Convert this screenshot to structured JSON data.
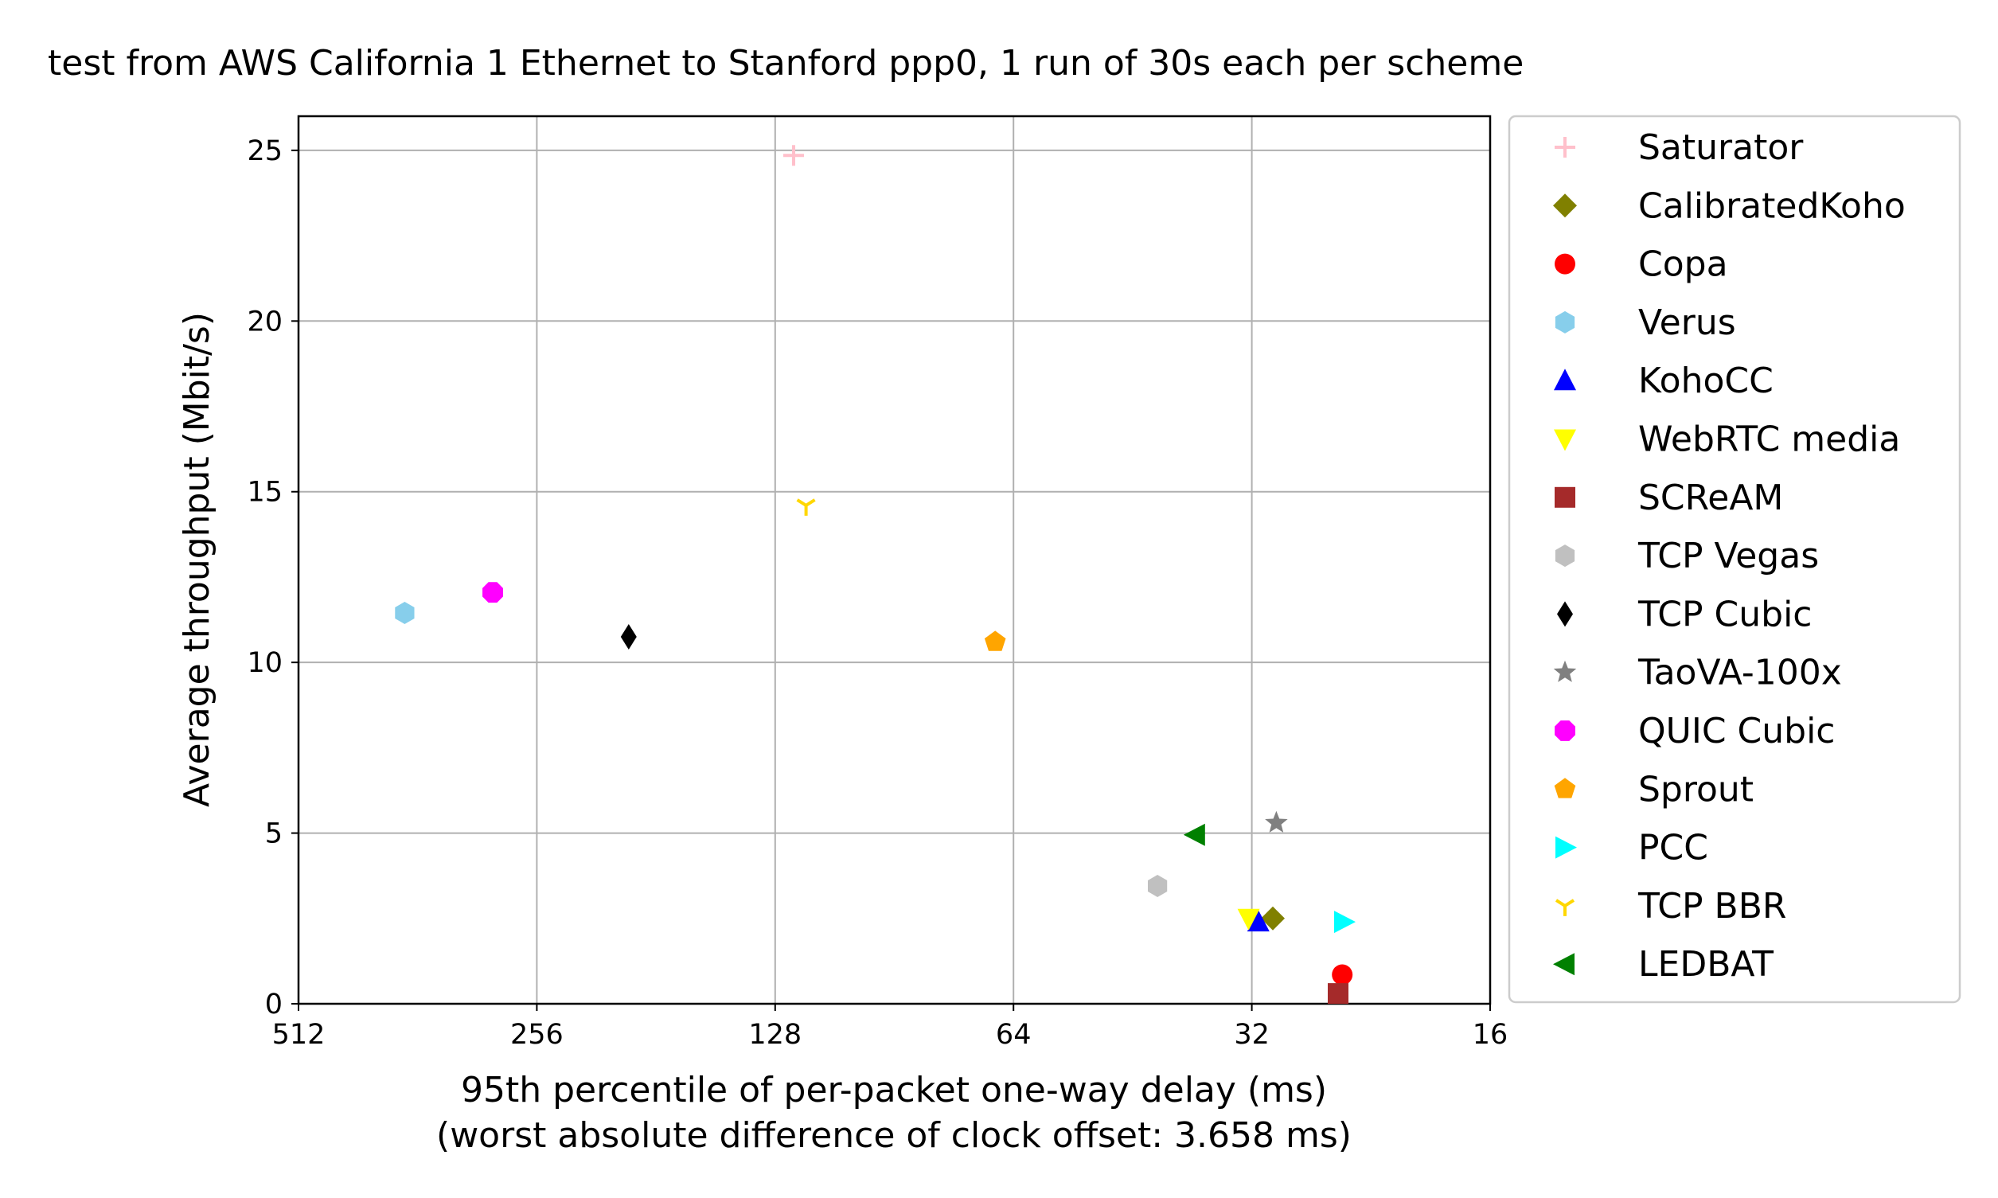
{
  "chart_data": {
    "type": "scatter",
    "title": "test from AWS California 1 Ethernet to Stanford ppp0, 1 run of 30s each per scheme",
    "xlabel": "95th percentile of per-packet one-way delay (ms)",
    "xlabel2": "(worst absolute difference of clock offset: 3.658 ms)",
    "ylabel": "Average throughput (Mbit/s)",
    "x_scale": "log2",
    "x_inverted": true,
    "xlim": [
      512,
      16
    ],
    "ylim": [
      0,
      26
    ],
    "xticks": [
      512,
      256,
      128,
      64,
      32,
      16
    ],
    "xtick_labels": [
      "512",
      "256",
      "128",
      "64",
      "32",
      "16"
    ],
    "yticks": [
      0,
      5,
      10,
      15,
      20,
      25
    ],
    "ytick_labels": [
      "0",
      "5",
      "10",
      "15",
      "20",
      "25"
    ],
    "grid": true,
    "legend_position": "outside-right",
    "series": [
      {
        "name": "Saturator",
        "marker": "plus",
        "color": "#ffc0cb",
        "x": 121.3,
        "y": 24.85
      },
      {
        "name": "CalibratedKoho",
        "marker": "diamond",
        "color": "#808000",
        "x": 30.1,
        "y": 2.5
      },
      {
        "name": "Copa",
        "marker": "circle",
        "color": "#ff0000",
        "x": 24.6,
        "y": 0.85
      },
      {
        "name": "Verus",
        "marker": "hexagon",
        "color": "#87ceeb",
        "x": 376,
        "y": 11.45
      },
      {
        "name": "KohoCC",
        "marker": "triangle-up",
        "color": "#0000ff",
        "x": 31.4,
        "y": 2.4
      },
      {
        "name": "WebRTC media",
        "marker": "triangle-down",
        "color": "#ffff00",
        "x": 32.3,
        "y": 2.5
      },
      {
        "name": "SCReAM",
        "marker": "square",
        "color": "#a52a2a",
        "x": 24.9,
        "y": 0.3
      },
      {
        "name": "TCP Vegas",
        "marker": "hexagon",
        "color": "#c0c0c0",
        "x": 42.1,
        "y": 3.45
      },
      {
        "name": "TCP Cubic",
        "marker": "thin-diamond",
        "color": "#000000",
        "x": 196,
        "y": 10.75
      },
      {
        "name": "TaoVA-100x",
        "marker": "star",
        "color": "#808080",
        "x": 29.8,
        "y": 5.3
      },
      {
        "name": "QUIC Cubic",
        "marker": "octagon",
        "color": "#ff00ff",
        "x": 291,
        "y": 12.05
      },
      {
        "name": "Sprout",
        "marker": "pentagon",
        "color": "#ffa500",
        "x": 67.5,
        "y": 10.6
      },
      {
        "name": "PCC",
        "marker": "triangle-right",
        "color": "#00ffff",
        "x": 24.5,
        "y": 2.4
      },
      {
        "name": "TCP BBR",
        "marker": "tri-down",
        "color": "#ffd700",
        "x": 117,
        "y": 14.6
      },
      {
        "name": "LEDBAT",
        "marker": "triangle-left",
        "color": "#008000",
        "x": 37.7,
        "y": 4.95
      }
    ]
  }
}
